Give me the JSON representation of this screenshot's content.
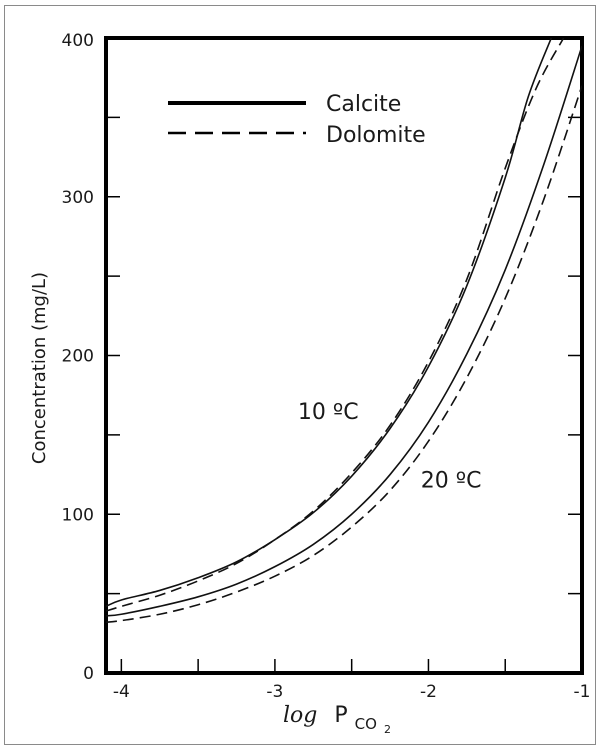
{
  "chart_data": {
    "type": "line",
    "xlabel": "log P_CO2",
    "xlabel_parts": {
      "prefix": "log",
      "var": "P",
      "sub": "CO",
      "subsub": "2"
    },
    "ylabel": "Concentration (mg/L)",
    "xlim": [
      -4.1,
      -1
    ],
    "ylim": [
      0,
      400
    ],
    "x_ticks": [
      -4,
      -3,
      -2,
      -1
    ],
    "x_tick_labels": [
      "-4",
      "-3",
      "-2",
      "-1"
    ],
    "y_ticks": [
      0,
      100,
      200,
      300,
      400
    ],
    "y_tick_labels": [
      "0",
      "100",
      "200",
      "300",
      "400"
    ],
    "y_minor_ticks": [
      50,
      150,
      250,
      350
    ],
    "x_minor_ticks": [
      -3.5,
      -2.5,
      -1.5
    ],
    "grid": false,
    "legend": {
      "position": "top-left",
      "entries": [
        {
          "label": "Calcite",
          "style": "solid"
        },
        {
          "label": "Dolomite",
          "style": "dashed"
        }
      ]
    },
    "annotations": [
      {
        "text": "10 ºC",
        "x": -2.85,
        "y": 160
      },
      {
        "text": "20 ºC",
        "x": -2.05,
        "y": 117
      }
    ],
    "series": [
      {
        "mineral": "Calcite",
        "temperature": "10 ºC",
        "style": "solid",
        "x": [
          -4.1,
          -4.0,
          -3.75,
          -3.5,
          -3.25,
          -3.0,
          -2.75,
          -2.5,
          -2.25,
          -2.0,
          -1.75,
          -1.5,
          -1.35,
          -1.2
        ],
        "y": [
          42,
          46,
          52,
          60,
          70,
          84,
          101,
          124,
          154,
          193,
          244,
          312,
          363,
          400
        ]
      },
      {
        "mineral": "Dolomite",
        "temperature": "10 ºC",
        "style": "dashed",
        "x": [
          -4.1,
          -4.0,
          -3.75,
          -3.5,
          -3.25,
          -3.0,
          -2.75,
          -2.5,
          -2.25,
          -2.0,
          -1.75,
          -1.5,
          -1.3,
          -1.12
        ],
        "y": [
          39,
          42,
          49,
          58,
          69,
          84,
          102,
          126,
          156,
          196,
          248,
          318,
          368,
          400
        ]
      },
      {
        "mineral": "Calcite",
        "temperature": "20 ºC",
        "style": "solid",
        "x": [
          -4.1,
          -4.0,
          -3.75,
          -3.5,
          -3.25,
          -3.0,
          -2.75,
          -2.5,
          -2.25,
          -2.0,
          -1.75,
          -1.5,
          -1.25,
          -1.0
        ],
        "y": [
          36,
          37,
          42,
          48,
          56,
          67,
          81,
          100,
          125,
          158,
          201,
          254,
          320,
          395
        ]
      },
      {
        "mineral": "Dolomite",
        "temperature": "20 ºC",
        "style": "dashed",
        "x": [
          -4.1,
          -4.0,
          -3.75,
          -3.5,
          -3.25,
          -3.0,
          -2.75,
          -2.5,
          -2.25,
          -2.0,
          -1.75,
          -1.5,
          -1.25,
          -1.0
        ],
        "y": [
          32,
          33,
          37,
          43,
          51,
          61,
          74,
          92,
          115,
          146,
          186,
          236,
          298,
          370
        ]
      }
    ]
  }
}
